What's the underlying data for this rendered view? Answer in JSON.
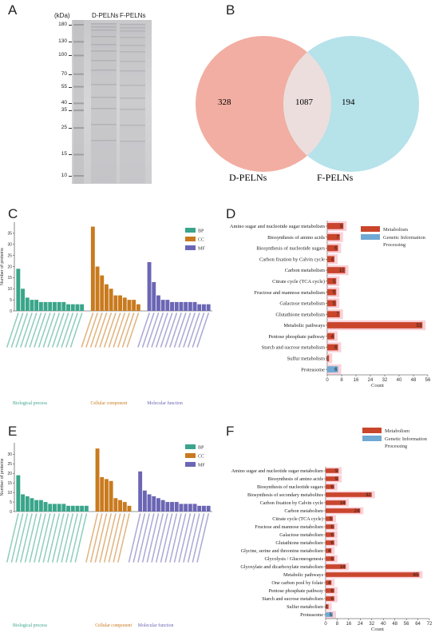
{
  "panels": {
    "a": "A",
    "b": "B",
    "c": "C",
    "d": "D",
    "e": "E",
    "f": "F"
  },
  "gel": {
    "unit": "(kDa)",
    "lanes": [
      "D-PELNs",
      "F-PELNs"
    ],
    "markers": [
      "180",
      "130",
      "100",
      "70",
      "55",
      "40",
      "35",
      "25",
      "15",
      "10"
    ],
    "marker_kda": [
      180,
      130,
      100,
      70,
      55,
      40,
      35,
      25,
      15,
      10
    ]
  },
  "venn": {
    "left_only": "328",
    "overlap": "1087",
    "right_only": "194",
    "left_label": "D-PELNs",
    "right_label": "F-PELNs",
    "left_color": "#f2aea2",
    "right_color": "#a9dde6"
  },
  "colors": {
    "bp": "#3aa58a",
    "cc": "#c97a1e",
    "mf": "#6b66b4",
    "metabolism": "#c9452c",
    "genetic": "#6fa9d4",
    "halo": "#f7c6cf"
  },
  "chart_data": [
    {
      "id": "C",
      "type": "bar",
      "ylabel": "Number of proteins",
      "ylim": [
        0,
        40
      ],
      "yticks": [
        0,
        5,
        10,
        15,
        20,
        25,
        30,
        35
      ],
      "legend": [
        "BP",
        "CC",
        "MF"
      ],
      "groups": [
        "Biological process",
        "Cellular component",
        "Molecular function"
      ],
      "series": [
        {
          "name": "BP",
          "values": [
            19,
            10,
            6,
            5,
            5,
            4,
            4,
            4,
            4,
            4,
            4,
            3,
            3,
            3,
            3
          ]
        },
        {
          "name": "CC",
          "values": [
            38,
            20,
            16,
            12,
            10,
            7,
            7,
            6,
            5,
            5,
            3
          ]
        },
        {
          "name": "MF",
          "values": [
            22,
            13,
            7,
            5,
            5,
            4,
            4,
            4,
            4,
            4,
            4,
            3,
            3,
            3
          ]
        }
      ]
    },
    {
      "id": "D",
      "type": "bar",
      "orientation": "horizontal",
      "xlabel": "Count",
      "xlim": [
        0,
        56
      ],
      "xticks": [
        0,
        8,
        16,
        24,
        32,
        40,
        48,
        56
      ],
      "legend": [
        "Metabolism",
        "Genetic Information Processing"
      ],
      "categories": [
        "Amino sugar and nucleotide sugar metabolism",
        "Biosynthesis of amino acids",
        "Biosynthesis of nucleotide sugars",
        "Carbon fixation by Calvin cycle",
        "Carbon metabolism",
        "Citrate cycle (TCA cycle)",
        "Fructose and mannose metabolism",
        "Galactose metabolism",
        "Glutathione metabolism",
        "Metabolic pathways",
        "Pentose phosphate pathway",
        "Starch and sucrose metabolism",
        "Sulfur metabolism",
        "Proteasome"
      ],
      "values": [
        9,
        7,
        6,
        4,
        10,
        5,
        5,
        5,
        7,
        53,
        4,
        6,
        1,
        6
      ],
      "labels": [
        "9",
        "7",
        "6",
        "4",
        "10",
        "5",
        "5",
        "5",
        "7",
        "53",
        "4",
        "6",
        "1",
        "6"
      ],
      "group": [
        "m",
        "m",
        "m",
        "m",
        "m",
        "m",
        "m",
        "m",
        "m",
        "m",
        "m",
        "m",
        "m",
        "g"
      ]
    },
    {
      "id": "E",
      "type": "bar",
      "ylabel": "Number of proteins",
      "ylim": [
        0,
        36
      ],
      "yticks": [
        0,
        5,
        10,
        15,
        20,
        25,
        30
      ],
      "legend": [
        "BP",
        "CC",
        "MF"
      ],
      "groups": [
        "Biological process",
        "Cellular component",
        "Molecular function"
      ],
      "series": [
        {
          "name": "BP",
          "values": [
            19,
            9,
            8,
            7,
            6,
            6,
            5,
            4,
            4,
            4,
            4,
            3,
            3,
            3,
            3,
            3
          ]
        },
        {
          "name": "CC",
          "values": [
            33,
            18,
            17,
            16,
            7,
            6,
            5,
            3
          ]
        },
        {
          "name": "MF",
          "values": [
            21,
            11,
            9,
            8,
            7,
            6,
            5,
            5,
            5,
            4,
            4,
            4,
            4,
            3,
            3,
            3
          ]
        }
      ]
    },
    {
      "id": "F",
      "type": "bar",
      "orientation": "horizontal",
      "xlabel": "Count",
      "xlim": [
        0,
        72
      ],
      "xticks": [
        0,
        8,
        16,
        24,
        32,
        40,
        48,
        56,
        64,
        72
      ],
      "legend": [
        "Metabolism",
        "Genetic Information Processing"
      ],
      "categories": [
        "Amino sugar and nucleotide sugar metabolism",
        "Biosynthesis of amino acids",
        "Biosynthesis of nucleotide sugars",
        "Biosynthesis of secondary metabolites",
        "Carbon fixation by Calvin cycle",
        "Carbon metabolism",
        "Citrate cycle (TCA cycle)",
        "Fructose and mannose metabolism",
        "Galactose metabolism",
        "Glutathione metabolism",
        "Glycine, serine and threonine metabolism",
        "Glycolysis / Gluconeogenesis",
        "Glyoxylate and dicarboxylate metabolism",
        "Metabolic pathways",
        "One carbon pool by folate",
        "Pentose phosphate pathway",
        "Starch and sucrose metabolism",
        "Sulfur metabolism",
        "Proteasome"
      ],
      "values": [
        9,
        9,
        6,
        32,
        14,
        24,
        5,
        6,
        6,
        6,
        4,
        6,
        14,
        65,
        4,
        6,
        6,
        2,
        5
      ],
      "labels": [
        "9",
        "9",
        "6",
        "32",
        "14",
        "24",
        "5",
        "6",
        "6",
        "6",
        "4",
        "6",
        "14",
        "65",
        "4",
        "6",
        "6",
        "2",
        "5"
      ],
      "group": [
        "m",
        "m",
        "m",
        "m",
        "m",
        "m",
        "m",
        "m",
        "m",
        "m",
        "m",
        "m",
        "m",
        "m",
        "m",
        "m",
        "m",
        "m",
        "g"
      ]
    }
  ]
}
